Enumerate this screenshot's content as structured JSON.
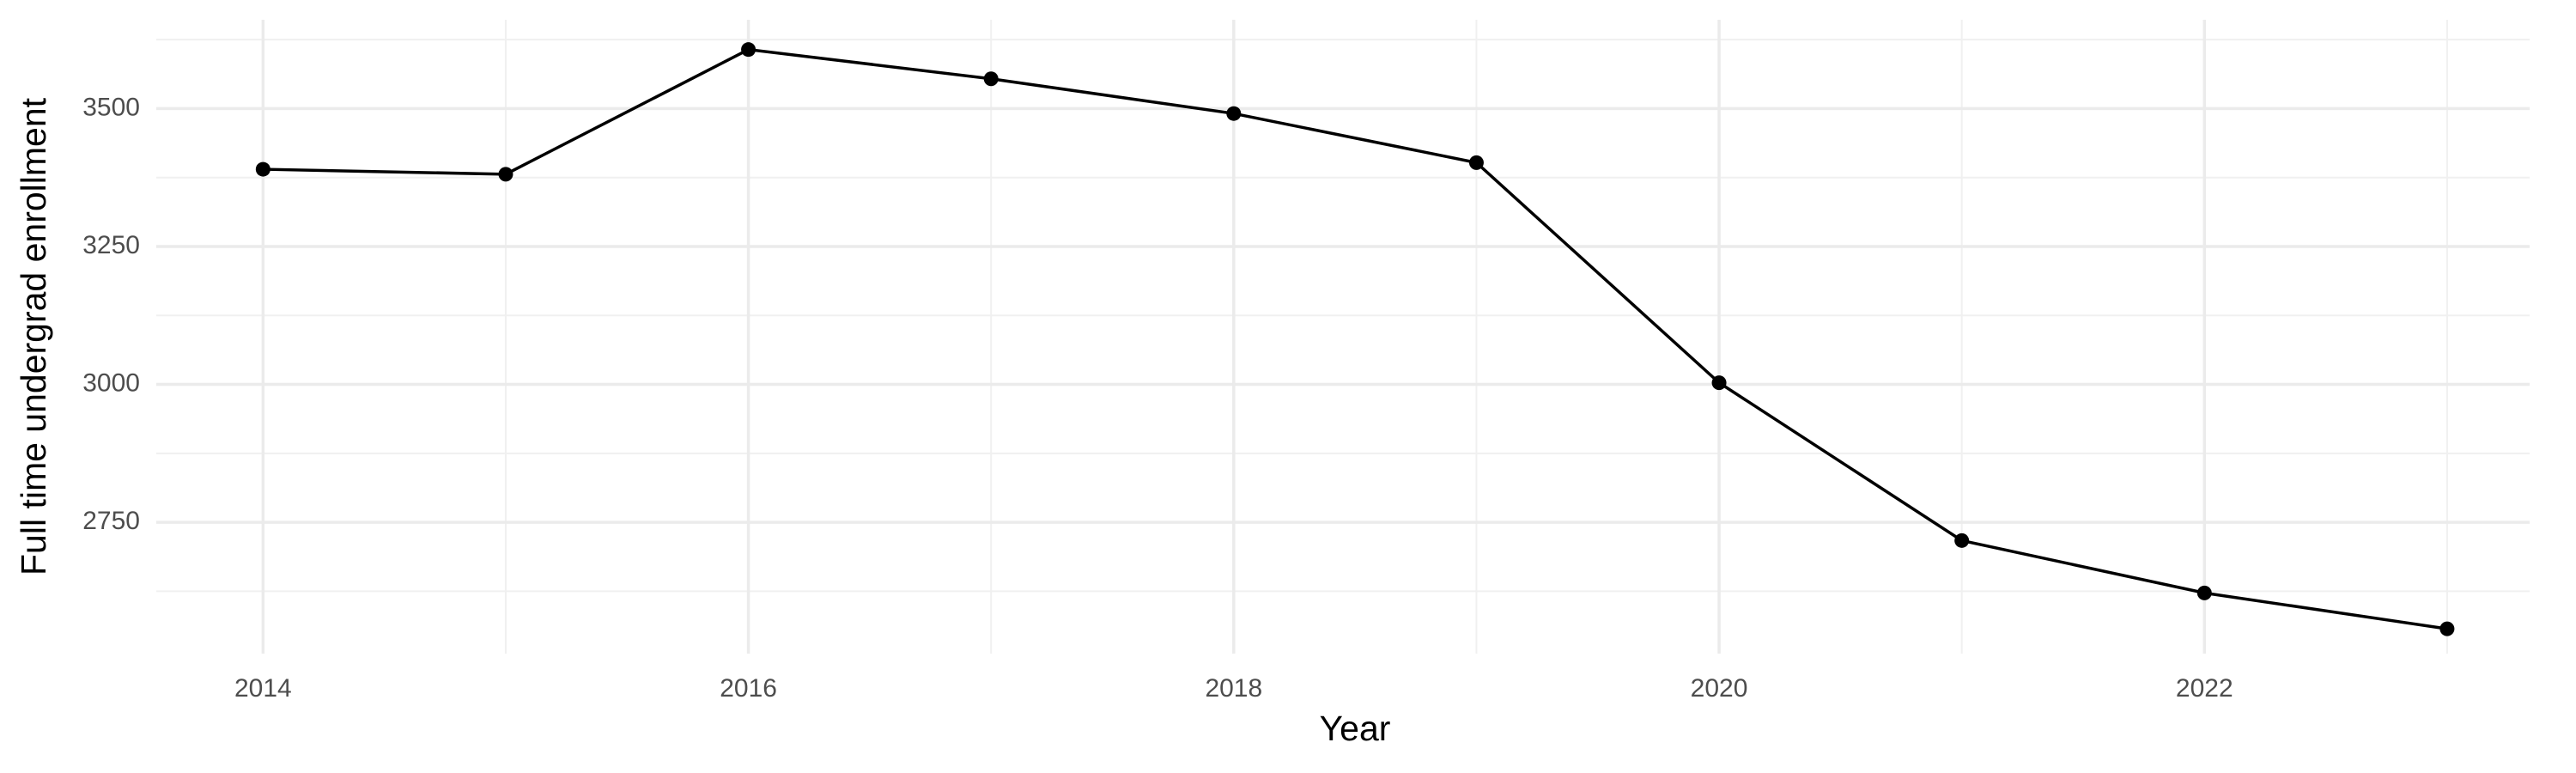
{
  "chart_data": {
    "type": "line",
    "x_label": "Year",
    "y_label": "Full time undergrad enrollment",
    "x": [
      2014,
      2015,
      2016,
      2017,
      2018,
      2019,
      2020,
      2021,
      2022,
      2023
    ],
    "series": [
      {
        "color": "#000000",
        "values": [
          3390,
          3381,
          3607,
          3554,
          3491,
          3402,
          3003,
          2717,
          2622,
          2557
        ]
      }
    ],
    "xlim": [
      2013.56,
      2023.34
    ],
    "xticks": [
      2014,
      2016,
      2018,
      2020,
      2022
    ],
    "xminor": [
      2015,
      2017,
      2019,
      2021,
      2023
    ],
    "ylim": [
      2512,
      3661
    ],
    "yticks": [
      2750,
      3000,
      3250,
      3500
    ],
    "yminor": [
      2625,
      2875,
      3125,
      3375,
      3625
    ],
    "grid": true
  }
}
